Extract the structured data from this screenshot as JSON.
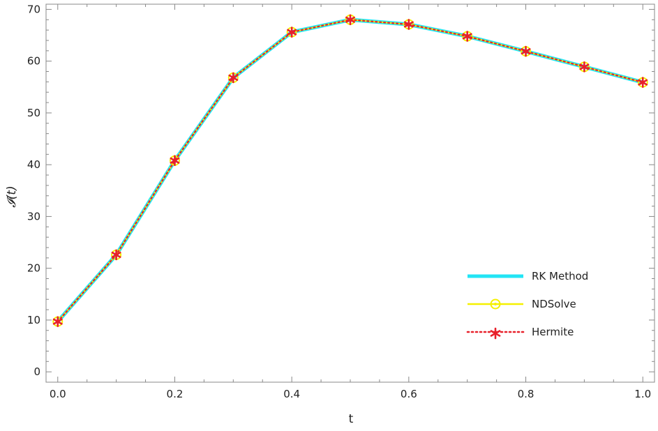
{
  "chart_data": {
    "type": "line",
    "title": "",
    "xlabel": "t",
    "ylabel": "𝓘(t)",
    "xlim": [
      -0.02,
      1.02
    ],
    "ylim": [
      -2,
      71
    ],
    "x_ticks": [
      0.0,
      0.2,
      0.4,
      0.6,
      0.8,
      1.0
    ],
    "x_tick_labels": [
      "0.0",
      "0.2",
      "0.4",
      "0.6",
      "0.8",
      "1.0"
    ],
    "y_ticks": [
      0,
      10,
      20,
      30,
      40,
      50,
      60,
      70
    ],
    "y_tick_labels": [
      "0",
      "10",
      "20",
      "30",
      "40",
      "50",
      "60",
      "70"
    ],
    "grid": false,
    "legend_position": "bottom-right",
    "x": [
      0.0,
      0.1,
      0.2,
      0.3,
      0.4,
      0.5,
      0.6,
      0.7,
      0.8,
      0.9,
      1.0
    ],
    "series": [
      {
        "name": "RK Method",
        "color": "#22e5f5",
        "marker": "none",
        "values": [
          9.7,
          22.6,
          40.8,
          56.8,
          65.6,
          68.0,
          67.1,
          64.8,
          61.9,
          58.9,
          55.9
        ]
      },
      {
        "name": "NDSolve",
        "color": "#f5f000",
        "marker": "circle-dot",
        "values": [
          9.7,
          22.6,
          40.8,
          56.8,
          65.6,
          68.0,
          67.1,
          64.8,
          61.9,
          58.9,
          55.9
        ]
      },
      {
        "name": "Hermite",
        "color": "#e8202a",
        "marker": "asterisk",
        "line": "dotted",
        "values": [
          9.7,
          22.6,
          40.8,
          56.8,
          65.6,
          68.0,
          67.1,
          64.8,
          61.9,
          58.9,
          55.9
        ]
      }
    ]
  }
}
